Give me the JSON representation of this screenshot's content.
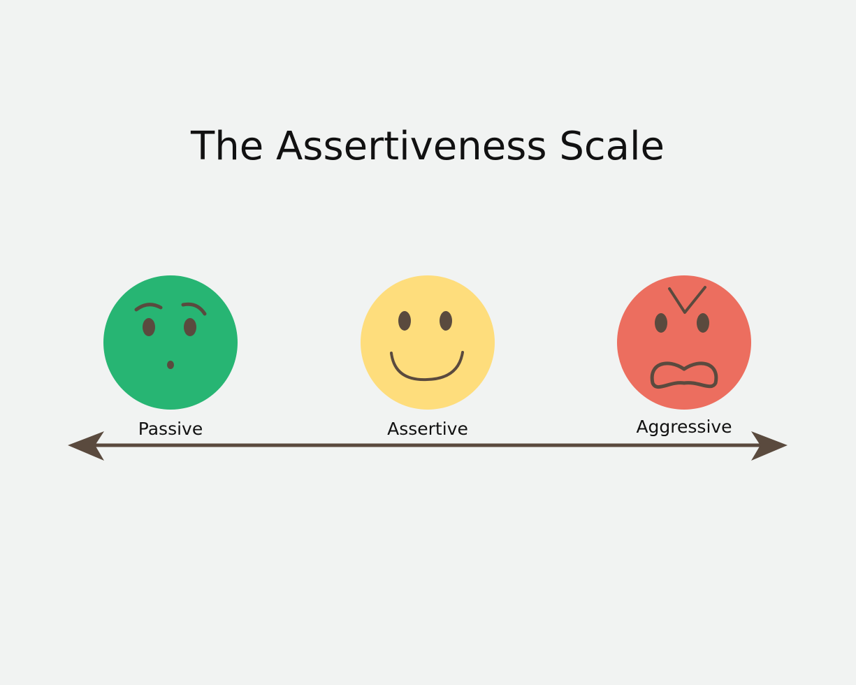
{
  "title": "The Assertiveness Scale",
  "scale": [
    {
      "label": "Passive",
      "expression": "surprised-face",
      "color": "#27b573"
    },
    {
      "label": "Assertive",
      "expression": "smiling-face",
      "color": "#fedd7c"
    },
    {
      "label": "Aggressive",
      "expression": "angry-face",
      "color": "#ec6e5f"
    }
  ],
  "colors": {
    "background": "#f1f3f2",
    "feature": "#5a4a3e",
    "arrow": "#5a4a3e",
    "text": "#111111"
  }
}
